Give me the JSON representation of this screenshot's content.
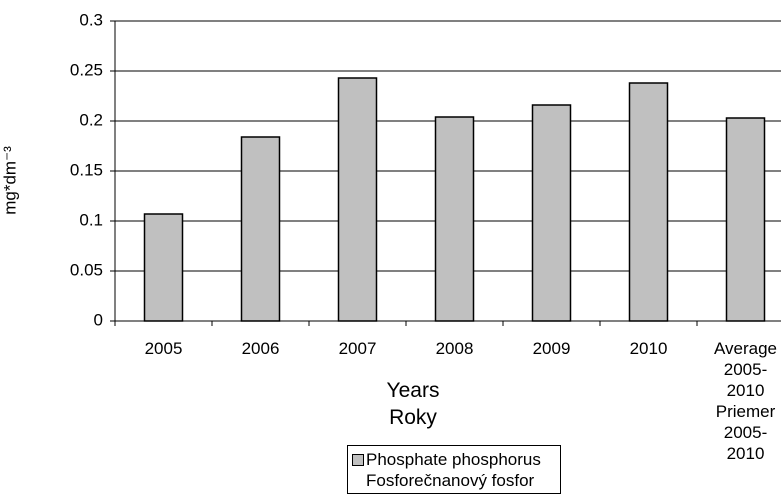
{
  "chart_data": {
    "type": "bar",
    "y_label": "mg*dm⁻³",
    "x_label": "Years Roky",
    "categories": [
      "2005",
      "2006",
      "2007",
      "2008",
      "2009",
      "2010",
      "Average 2005-2010 Priemer 2005-2010"
    ],
    "series": [
      {
        "name": "Phosphate phosphorus Fosforečnanový fosfor",
        "color": "#c0c0c0",
        "values": [
          0.107,
          0.184,
          0.243,
          0.204,
          0.216,
          0.238,
          0.203
        ]
      }
    ],
    "ylim": [
      0,
      0.3
    ],
    "yticks": [
      0,
      0.05,
      0.1,
      0.15,
      0.2,
      0.25,
      0.3
    ],
    "grid": true
  }
}
